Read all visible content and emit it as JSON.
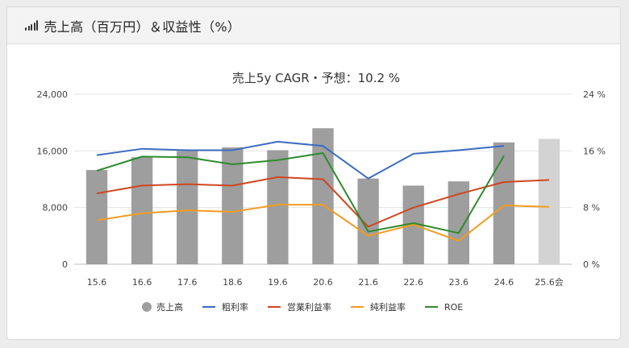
{
  "header": {
    "icon": "bar-chart-icon",
    "title": "売上高（百万円）＆収益性（%）"
  },
  "chart_data": {
    "type": "bar",
    "title": "売上5y CAGR・予想：10.2 %",
    "categories": [
      "15.6",
      "16.6",
      "17.6",
      "18.6",
      "19.6",
      "20.6",
      "21.6",
      "22.6",
      "23.6",
      "24.6",
      "25.6会"
    ],
    "left_axis": {
      "min": 0,
      "max": 24000,
      "ticks": [
        "0",
        "8,000",
        "16,000",
        "24,000"
      ],
      "tick_values": [
        0,
        8000,
        16000,
        24000
      ]
    },
    "right_axis": {
      "min": 0,
      "max": 24,
      "ticks": [
        "0 %",
        "8 %",
        "16 %",
        "24 %"
      ],
      "tick_values": [
        0,
        8,
        16,
        24
      ]
    },
    "bar_series": {
      "name": "売上高",
      "values": [
        13300,
        15100,
        16000,
        16500,
        16100,
        19200,
        12100,
        11100,
        11700,
        17200,
        17700
      ],
      "color": "#9e9e9e",
      "forecast_color": "#d3d3d3",
      "forecast_index": 10
    },
    "line_series": [
      {
        "name": "粗利率",
        "color": "#3b6cc2",
        "values": [
          15.4,
          16.3,
          16.1,
          16.1,
          17.3,
          16.7,
          12.1,
          15.6,
          16.1,
          16.7,
          null
        ]
      },
      {
        "name": "営業利益率",
        "color": "#d0461f",
        "values": [
          10.0,
          11.1,
          11.3,
          11.1,
          12.3,
          12.0,
          5.3,
          8.0,
          9.9,
          11.6,
          11.9
        ]
      },
      {
        "name": "純利益率",
        "color": "#f29c1f",
        "values": [
          6.2,
          7.2,
          7.6,
          7.4,
          8.4,
          8.4,
          4.0,
          5.6,
          3.3,
          8.3,
          8.1
        ]
      },
      {
        "name": "ROE",
        "color": "#2e8b2e",
        "values": [
          13.2,
          15.2,
          15.1,
          14.1,
          14.7,
          15.7,
          4.6,
          5.8,
          4.4,
          15.3,
          null
        ]
      }
    ],
    "legend": {
      "placement": "bottom",
      "items": [
        {
          "label": "売上高",
          "color": "#9e9e9e",
          "marker": "circle"
        },
        {
          "label": "粗利率",
          "color": "#3b6cc2",
          "marker": "line"
        },
        {
          "label": "営業利益率",
          "color": "#d0461f",
          "marker": "line"
        },
        {
          "label": "純利益率",
          "color": "#f29c1f",
          "marker": "line"
        },
        {
          "label": "ROE",
          "color": "#2e8b2e",
          "marker": "line"
        }
      ]
    },
    "grid": true
  }
}
